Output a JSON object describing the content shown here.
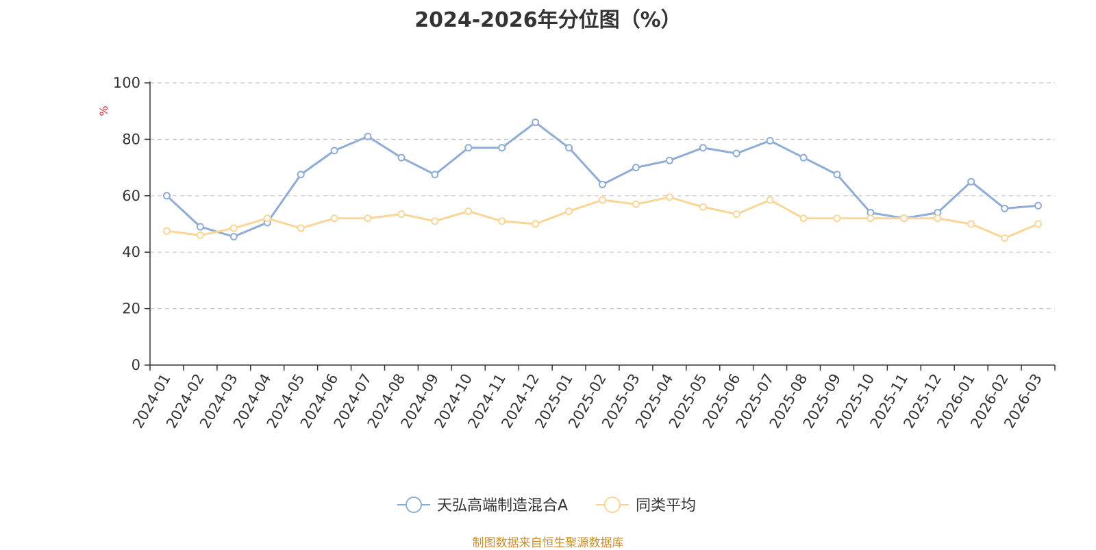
{
  "title": "2024-2026年分位图（%）",
  "source": "制图数据来自恒生聚源数据库",
  "chart_data": {
    "type": "line",
    "ylabel": "%",
    "ylim": [
      0,
      100
    ],
    "yticks": [
      0,
      20,
      40,
      60,
      80,
      100
    ],
    "grid": true,
    "legend_position": "bottom-center",
    "categories": [
      "2024-01",
      "2024-02",
      "2024-03",
      "2024-04",
      "2024-05",
      "2024-06",
      "2024-07",
      "2024-08",
      "2024-09",
      "2024-10",
      "2024-11",
      "2024-12",
      "2025-01",
      "2025-02",
      "2025-03",
      "2025-04",
      "2025-05",
      "2025-06",
      "2025-07",
      "2025-08",
      "2025-09",
      "2025-10",
      "2025-11",
      "2025-12",
      "2026-01",
      "2026-02",
      "2026-03"
    ],
    "series": [
      {
        "name": "天弘高端制造混合A",
        "color": "#8eacd6",
        "values": [
          60,
          49,
          45.5,
          50.5,
          67.5,
          76,
          81,
          73.5,
          67.5,
          77,
          77,
          86,
          77,
          64,
          70,
          72.5,
          77,
          75,
          79.5,
          73.5,
          67.5,
          54,
          52,
          54,
          65,
          55.5,
          56.5
        ]
      },
      {
        "name": "同类平均",
        "color": "#fad597",
        "values": [
          47.5,
          46,
          48.5,
          52,
          48.5,
          52,
          52,
          53.5,
          51,
          54.5,
          51,
          50,
          54.5,
          58.5,
          57,
          59.5,
          56,
          53.5,
          58.5,
          52,
          52,
          52,
          52,
          52,
          50,
          45,
          50
        ]
      }
    ]
  }
}
